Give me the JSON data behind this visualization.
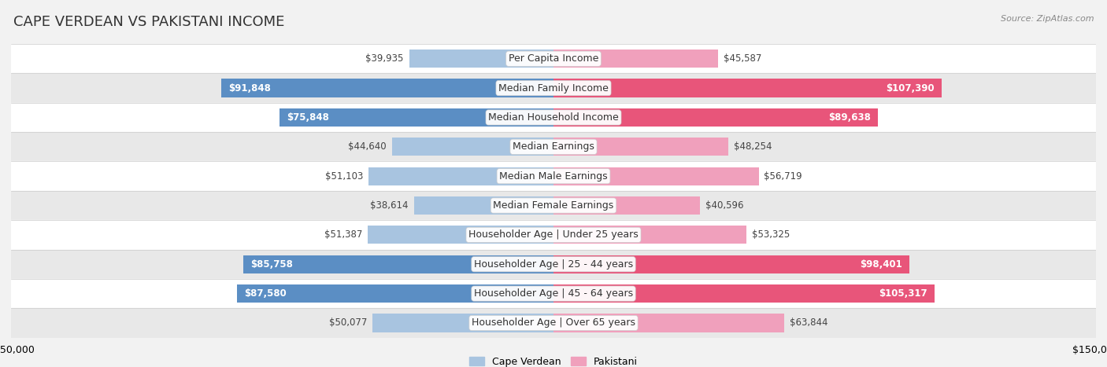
{
  "title": "CAPE VERDEAN VS PAKISTANI INCOME",
  "source": "Source: ZipAtlas.com",
  "categories": [
    "Per Capita Income",
    "Median Family Income",
    "Median Household Income",
    "Median Earnings",
    "Median Male Earnings",
    "Median Female Earnings",
    "Householder Age | Under 25 years",
    "Householder Age | 25 - 44 years",
    "Householder Age | 45 - 64 years",
    "Householder Age | Over 65 years"
  ],
  "cape_verdean": [
    39935,
    91848,
    75848,
    44640,
    51103,
    38614,
    51387,
    85758,
    87580,
    50077
  ],
  "pakistani": [
    45587,
    107390,
    89638,
    48254,
    56719,
    40596,
    53325,
    98401,
    105317,
    63844
  ],
  "xlim": 150000,
  "bar_height": 0.62,
  "color_cv_strong": "#5b8ec4",
  "color_cv_light": "#a8c4e0",
  "color_pk_strong": "#e8557a",
  "color_pk_light": "#f0a0bc",
  "bg_color": "#f2f2f2",
  "row_bg_light": "#ffffff",
  "row_bg_dark": "#e8e8e8",
  "label_fontsize": 9,
  "title_fontsize": 13,
  "value_fontsize": 8.5,
  "legend_fontsize": 9,
  "axis_label_fontsize": 9,
  "cv_strong_threshold": 65000,
  "pk_strong_threshold": 65000
}
